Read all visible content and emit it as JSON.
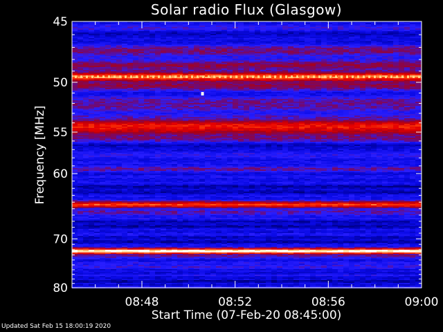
{
  "chart_data": {
    "type": "heatmap",
    "title": "Solar radio Flux (Glasgow)",
    "xlabel": "Start Time (07-Feb-20 08:45:00)",
    "ylabel": "Frequency [MHz]",
    "x_range": [
      "08:45",
      "09:00"
    ],
    "x_ticks": [
      "08:48",
      "08:52",
      "08:56",
      "09:00"
    ],
    "x_tick_minutes": [
      3,
      7,
      11,
      15
    ],
    "ylim": [
      45,
      80
    ],
    "y_ticks": [
      45,
      50,
      55,
      60,
      70,
      80
    ],
    "y_scale": "reciprocal",
    "colorscale": [
      "#000040",
      "#0000c8",
      "#1c1cff",
      "#6a0a60",
      "#b00000",
      "#e80000",
      "#ff8020",
      "#ffe0a0",
      "#ffffff"
    ],
    "bands": [
      {
        "freq": 45.5,
        "width": 0.3,
        "level": 0.35
      },
      {
        "freq": 47.3,
        "width": 0.5,
        "level": 0.45
      },
      {
        "freq": 48.5,
        "width": 0.5,
        "level": 0.5
      },
      {
        "freq": 49.5,
        "width": 0.4,
        "level": 0.85,
        "pattern": "dashed"
      },
      {
        "freq": 50.3,
        "width": 0.5,
        "level": 0.5
      },
      {
        "freq": 52.0,
        "width": 0.9,
        "level": 0.42
      },
      {
        "freq": 54.4,
        "width": 0.9,
        "level": 0.72
      },
      {
        "freq": 55.6,
        "width": 0.6,
        "level": 0.45
      },
      {
        "freq": 57.6,
        "width": 0.5,
        "level": 0.32
      },
      {
        "freq": 59.4,
        "width": 0.5,
        "level": 0.42
      },
      {
        "freq": 64.4,
        "width": 0.5,
        "level": 0.78
      },
      {
        "freq": 65.5,
        "width": 0.6,
        "level": 0.4
      },
      {
        "freq": 72.3,
        "width": 0.6,
        "level": 1.0
      },
      {
        "freq": 73.2,
        "width": 0.5,
        "level": 0.42
      },
      {
        "freq": 75.4,
        "width": 0.7,
        "level": 0.35
      }
    ],
    "spots": [
      {
        "minute": 5.6,
        "freq": 51.1,
        "level": 1.0
      }
    ]
  },
  "footer": "Updated Sat Feb 15 18:00:19 2020"
}
